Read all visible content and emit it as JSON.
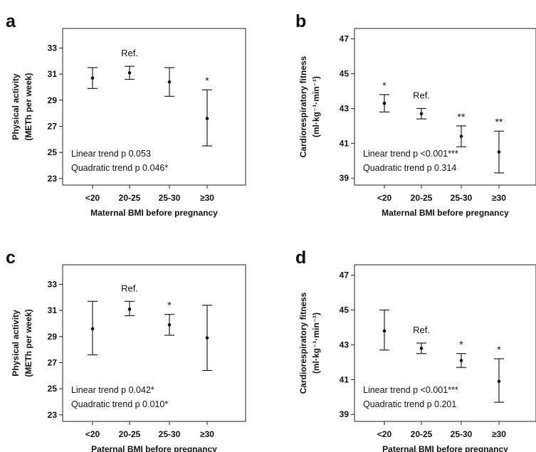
{
  "chart_data": [
    {
      "panel": "a",
      "type": "errorbar",
      "xlabel": "Maternal BMI before pregnancy",
      "ylabel_lines": [
        "Physical activity",
        "(METh per week)"
      ],
      "categories": [
        "<20",
        "20-25",
        "25-30",
        "≥30"
      ],
      "ylim": [
        22.5,
        34.5
      ],
      "yticks": [
        "23",
        "25",
        "27",
        "29",
        "31",
        "33"
      ],
      "points": [
        {
          "mean": 30.7,
          "low": 29.9,
          "high": 31.5,
          "mark": ""
        },
        {
          "mean": 31.1,
          "low": 30.6,
          "high": 31.6,
          "mark": "Ref."
        },
        {
          "mean": 30.4,
          "low": 29.3,
          "high": 31.5,
          "mark": ""
        },
        {
          "mean": 27.6,
          "low": 25.5,
          "high": 29.8,
          "mark": "*"
        }
      ],
      "notes": [
        "Linear trend p 0.053",
        "Quadratic trend p 0.046*"
      ]
    },
    {
      "panel": "b",
      "type": "errorbar",
      "xlabel": "Maternal BMI before pregnancy",
      "ylabel_lines": [
        "Cardiorespiratory fitness",
        "(ml·kg⁻¹·min⁻¹)"
      ],
      "categories": [
        "<20",
        "20-25",
        "25-30",
        "≥30"
      ],
      "ylim": [
        38.6,
        47.6
      ],
      "yticks": [
        "39",
        "41",
        "43",
        "45",
        "47"
      ],
      "points": [
        {
          "mean": 43.3,
          "low": 42.8,
          "high": 43.8,
          "mark": "*"
        },
        {
          "mean": 42.7,
          "low": 42.4,
          "high": 43.0,
          "mark": "Ref."
        },
        {
          "mean": 41.4,
          "low": 40.8,
          "high": 42.0,
          "mark": "**"
        },
        {
          "mean": 40.5,
          "low": 39.3,
          "high": 41.7,
          "mark": "**"
        }
      ],
      "notes": [
        "Linear trend p <0.001***",
        "Quadratic trend p 0.314"
      ]
    },
    {
      "panel": "c",
      "type": "errorbar",
      "xlabel": "Paternal BMI before pregnancy",
      "ylabel_lines": [
        "Physical activity",
        "(METh per week)"
      ],
      "categories": [
        "<20",
        "20-25",
        "25-30",
        "≥30"
      ],
      "ylim": [
        22.5,
        34.5
      ],
      "yticks": [
        "23",
        "25",
        "27",
        "29",
        "31",
        "33"
      ],
      "points": [
        {
          "mean": 29.6,
          "low": 27.6,
          "high": 31.7,
          "mark": ""
        },
        {
          "mean": 31.1,
          "low": 30.6,
          "high": 31.7,
          "mark": "Ref."
        },
        {
          "mean": 29.9,
          "low": 29.1,
          "high": 30.7,
          "mark": "*"
        },
        {
          "mean": 28.9,
          "low": 26.4,
          "high": 31.4,
          "mark": ""
        }
      ],
      "notes": [
        "Linear trend p 0.042*",
        "Quadratic trend p 0.010*"
      ]
    },
    {
      "panel": "d",
      "type": "errorbar",
      "xlabel": "Paternal BMI before pregnancy",
      "ylabel_lines": [
        "Cardiorespiratory fitness",
        "(ml·kg⁻¹·min⁻¹)"
      ],
      "categories": [
        "<20",
        "20-25",
        "25-30",
        "≥30"
      ],
      "ylim": [
        38.6,
        47.6
      ],
      "yticks": [
        "39",
        "41",
        "43",
        "45",
        "47"
      ],
      "points": [
        {
          "mean": 43.8,
          "low": 42.7,
          "high": 45.0,
          "mark": ""
        },
        {
          "mean": 42.8,
          "low": 42.5,
          "high": 43.1,
          "mark": "Ref."
        },
        {
          "mean": 42.1,
          "low": 41.7,
          "high": 42.5,
          "mark": "*"
        },
        {
          "mean": 40.9,
          "low": 39.7,
          "high": 42.2,
          "mark": "*"
        }
      ],
      "notes": [
        "Linear trend p <0.001***",
        "Quadratic trend p 0.201"
      ]
    }
  ]
}
